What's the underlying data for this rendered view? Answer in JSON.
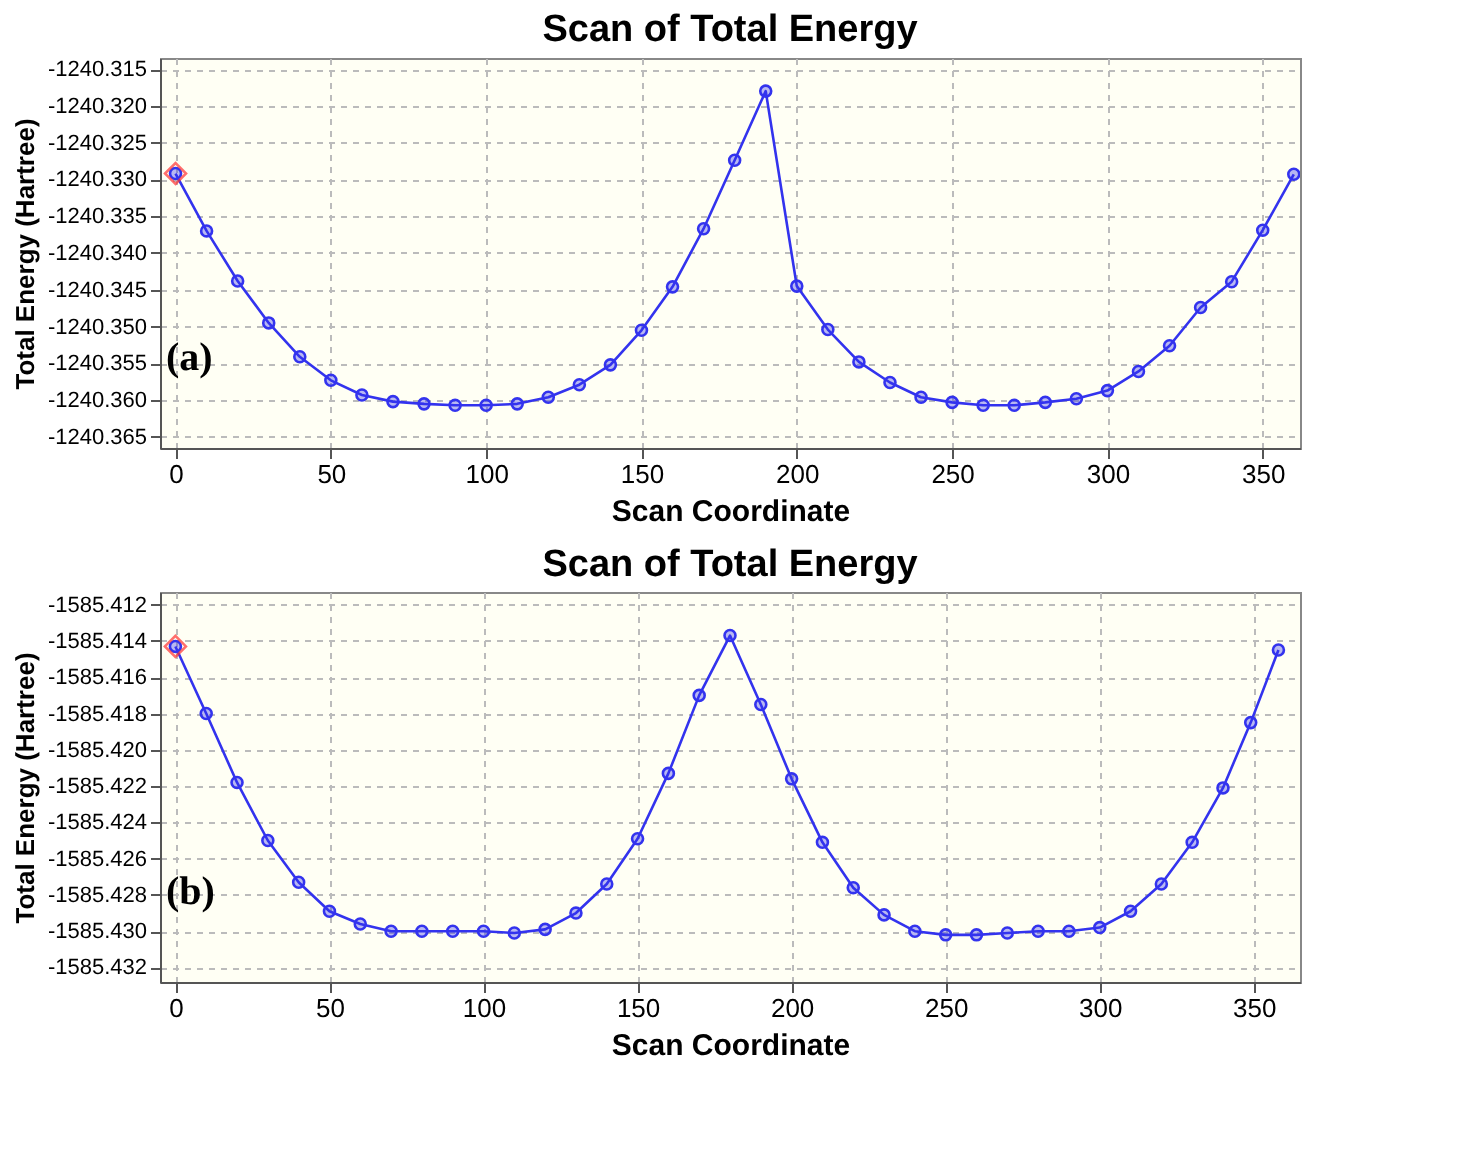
{
  "chart_data": [
    {
      "type": "line",
      "title": "Scan of Total Energy",
      "xlabel": "Scan Coordinate",
      "ylabel": "Total Energy (Hartree)",
      "annotations": [
        "(a)"
      ],
      "grid": true,
      "marker": "circle",
      "line_style": "solid",
      "xlim": [
        -5,
        362
      ],
      "ylim": [
        -1240.3665,
        -1240.3135
      ],
      "xticks": [
        0,
        50,
        100,
        150,
        200,
        250,
        300,
        350
      ],
      "yticks": [
        {
          "value": -1240.365,
          "label": "-1240.365"
        },
        {
          "value": -1240.36,
          "label": "-1240.360"
        },
        {
          "value": -1240.355,
          "label": "-1240.355"
        },
        {
          "value": -1240.35,
          "label": "-1240.350"
        },
        {
          "value": -1240.345,
          "label": "-1240.345"
        },
        {
          "value": -1240.34,
          "label": "-1240.340"
        },
        {
          "value": -1240.335,
          "label": "-1240.335"
        },
        {
          "value": -1240.33,
          "label": "-1240.330"
        },
        {
          "value": -1240.325,
          "label": "-1240.325"
        },
        {
          "value": -1240.32,
          "label": "-1240.320"
        },
        {
          "value": -1240.315,
          "label": "-1240.315"
        }
      ],
      "series": [
        {
          "color": "#3333ee",
          "x": [
            0,
            10,
            20,
            30,
            40,
            50,
            60,
            70,
            80,
            90,
            100,
            110,
            120,
            130,
            140,
            150,
            160,
            170,
            180,
            190,
            200,
            210,
            220,
            230,
            240,
            250,
            260,
            270,
            280,
            290,
            300,
            310,
            320,
            330,
            340,
            350,
            360
          ],
          "values": [
            -1240.3292,
            -1240.337,
            -1240.3438,
            -1240.3495,
            -1240.3541,
            -1240.3573,
            -1240.3593,
            -1240.3602,
            -1240.3605,
            -1240.3607,
            -1240.3607,
            -1240.3605,
            -1240.3596,
            -1240.3579,
            -1240.3552,
            -1240.3505,
            -1240.3446,
            -1240.3367,
            -1240.3274,
            -1240.318,
            -1240.3445,
            -1240.3504,
            -1240.3548,
            -1240.3576,
            -1240.3596,
            -1240.3603,
            -1240.3607,
            -1240.3607,
            -1240.3603,
            -1240.3598,
            -1240.3587,
            -1240.3561,
            -1240.3526,
            -1240.3474,
            -1240.3439,
            -1240.3369,
            -1240.3293
          ]
        },
        {
          "type": "scatter",
          "marker": "diamond",
          "color": "#ff3333",
          "x": [
            0
          ],
          "values": [
            -1240.3292
          ]
        }
      ]
    },
    {
      "type": "line",
      "title": "Scan of Total Energy",
      "xlabel": "Scan Coordinate",
      "ylabel": "Total Energy (Hartree)",
      "annotations": [
        "(b)"
      ],
      "grid": true,
      "marker": "circle",
      "line_style": "solid",
      "xlim": [
        -5,
        365
      ],
      "ylim": [
        -1585.4328,
        -1585.4113
      ],
      "xticks": [
        0,
        50,
        100,
        150,
        200,
        250,
        300,
        350
      ],
      "yticks": [
        {
          "value": -1585.432,
          "label": "-1585.432"
        },
        {
          "value": -1585.43,
          "label": "-1585.430"
        },
        {
          "value": -1585.428,
          "label": "-1585.428"
        },
        {
          "value": -1585.426,
          "label": "-1585.426"
        },
        {
          "value": -1585.424,
          "label": "-1585.424"
        },
        {
          "value": -1585.422,
          "label": "-1585.422"
        },
        {
          "value": -1585.42,
          "label": "-1585.420"
        },
        {
          "value": -1585.418,
          "label": "-1585.418"
        },
        {
          "value": -1585.416,
          "label": "-1585.416"
        },
        {
          "value": -1585.414,
          "label": "-1585.414"
        },
        {
          "value": -1585.412,
          "label": "-1585.412"
        }
      ],
      "series": [
        {
          "color": "#3333ee",
          "x": [
            0,
            10,
            20,
            30,
            40,
            50,
            60,
            70,
            80,
            90,
            100,
            110,
            120,
            130,
            140,
            150,
            160,
            170,
            180,
            190,
            200,
            210,
            220,
            230,
            240,
            250,
            260,
            270,
            280,
            290,
            300,
            310,
            320,
            330,
            340,
            349,
            358
          ],
          "values": [
            -1585.4143,
            -1585.418,
            -1585.4218,
            -1585.425,
            -1585.4273,
            -1585.4289,
            -1585.4296,
            -1585.43,
            -1585.43,
            -1585.43,
            -1585.43,
            -1585.4301,
            -1585.4299,
            -1585.429,
            -1585.4274,
            -1585.4249,
            -1585.4213,
            -1585.417,
            -1585.4137,
            -1585.4175,
            -1585.4216,
            -1585.4251,
            -1585.4276,
            -1585.4291,
            -1585.43,
            -1585.4302,
            -1585.4302,
            -1585.4301,
            -1585.43,
            -1585.43,
            -1585.4298,
            -1585.4289,
            -1585.4274,
            -1585.4251,
            -1585.4221,
            -1585.4185,
            -1585.4145
          ]
        },
        {
          "type": "scatter",
          "marker": "diamond",
          "color": "#ff3333",
          "x": [
            0
          ],
          "values": [
            -1585.4143
          ]
        }
      ]
    }
  ]
}
